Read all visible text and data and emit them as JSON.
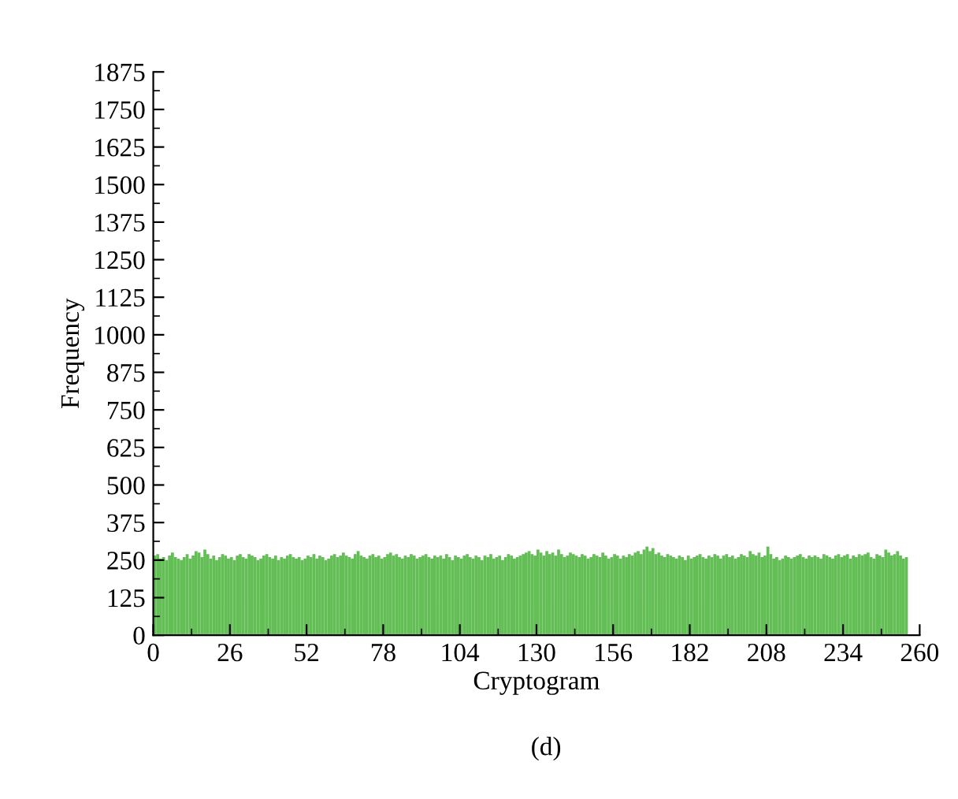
{
  "chart_data": {
    "type": "histogram",
    "xlabel": "Cryptogram",
    "ylabel": "Frequency",
    "annotations": [
      "(d)"
    ],
    "color": "#63be55",
    "bins": [
      0,
      1,
      2,
      3,
      4,
      5,
      6,
      7,
      8,
      9,
      10,
      11,
      12,
      13,
      14,
      15,
      16,
      17,
      18,
      19,
      20,
      21,
      22,
      23,
      24,
      25,
      26,
      27,
      28,
      29,
      30,
      31,
      32,
      33,
      34,
      35,
      36,
      37,
      38,
      39,
      40,
      41,
      42,
      43,
      44,
      45,
      46,
      47,
      48,
      49,
      50,
      51,
      52,
      53,
      54,
      55,
      56,
      57,
      58,
      59,
      60,
      61,
      62,
      63,
      64,
      65,
      66,
      67,
      68,
      69,
      70,
      71,
      72,
      73,
      74,
      75,
      76,
      77,
      78,
      79,
      80,
      81,
      82,
      83,
      84,
      85,
      86,
      87,
      88,
      89,
      90,
      91,
      92,
      93,
      94,
      95,
      96,
      97,
      98,
      99,
      100,
      101,
      102,
      103,
      104,
      105,
      106,
      107,
      108,
      109,
      110,
      111,
      112,
      113,
      114,
      115,
      116,
      117,
      118,
      119,
      120,
      121,
      122,
      123,
      124,
      125,
      126,
      127,
      128,
      129,
      130,
      131,
      132,
      133,
      134,
      135,
      136,
      137,
      138,
      139,
      140,
      141,
      142,
      143,
      144,
      145,
      146,
      147,
      148,
      149,
      150,
      151,
      152,
      153,
      154,
      155,
      156,
      157,
      158,
      159,
      160,
      161,
      162,
      163,
      164,
      165,
      166,
      167,
      168,
      169,
      170,
      171,
      172,
      173,
      174,
      175,
      176,
      177,
      178,
      179,
      180,
      181,
      182,
      183,
      184,
      185,
      186,
      187,
      188,
      189,
      190,
      191,
      192,
      193,
      194,
      195,
      196,
      197,
      198,
      199,
      200,
      201,
      202,
      203,
      204,
      205,
      206,
      207,
      208,
      209,
      210,
      211,
      212,
      213,
      214,
      215,
      216,
      217,
      218,
      219,
      220,
      221,
      222,
      223,
      224,
      225,
      226,
      227,
      228,
      229,
      230,
      231,
      232,
      233,
      234,
      235,
      236,
      237,
      238,
      239,
      240,
      241,
      242,
      243,
      244,
      245,
      246,
      247,
      248,
      249,
      250,
      251,
      252,
      253,
      254,
      255,
      256
    ],
    "values": [
      265,
      270,
      255,
      260,
      250,
      265,
      275,
      260,
      255,
      250,
      260,
      270,
      255,
      265,
      280,
      275,
      260,
      285,
      270,
      255,
      265,
      250,
      260,
      270,
      265,
      255,
      260,
      250,
      265,
      270,
      260,
      255,
      270,
      265,
      260,
      250,
      255,
      265,
      270,
      260,
      255,
      265,
      250,
      260,
      255,
      265,
      270,
      260,
      255,
      260,
      250,
      255,
      265,
      260,
      270,
      255,
      265,
      260,
      250,
      255,
      265,
      270,
      260,
      265,
      275,
      265,
      260,
      255,
      270,
      280,
      265,
      260,
      255,
      265,
      270,
      260,
      265,
      255,
      260,
      270,
      275,
      265,
      270,
      260,
      255,
      265,
      260,
      270,
      265,
      255,
      260,
      265,
      270,
      260,
      255,
      265,
      260,
      265,
      255,
      270,
      260,
      250,
      265,
      260,
      255,
      265,
      270,
      260,
      255,
      265,
      260,
      250,
      265,
      260,
      270,
      255,
      260,
      265,
      250,
      260,
      270,
      265,
      255,
      260,
      265,
      270,
      275,
      280,
      270,
      265,
      285,
      275,
      265,
      280,
      270,
      275,
      265,
      285,
      270,
      260,
      265,
      275,
      270,
      265,
      260,
      270,
      265,
      255,
      260,
      270,
      265,
      260,
      275,
      265,
      255,
      260,
      270,
      265,
      255,
      265,
      260,
      270,
      265,
      275,
      280,
      270,
      285,
      295,
      280,
      290,
      270,
      275,
      265,
      260,
      270,
      265,
      260,
      255,
      265,
      260,
      250,
      265,
      255,
      260,
      265,
      270,
      260,
      255,
      265,
      260,
      270,
      265,
      255,
      265,
      270,
      260,
      265,
      255,
      260,
      270,
      265,
      260,
      280,
      270,
      265,
      275,
      260,
      265,
      295,
      270,
      255,
      260,
      250,
      255,
      265,
      260,
      255,
      260,
      265,
      270,
      260,
      255,
      265,
      260,
      265,
      260,
      255,
      270,
      265,
      260,
      255,
      265,
      270,
      260,
      265,
      270,
      255,
      265,
      260,
      270,
      265,
      270,
      275,
      260,
      255,
      270,
      265,
      260,
      285,
      275,
      265,
      270,
      280,
      265,
      255,
      260
    ],
    "xlim": [
      0,
      260
    ],
    "xticks": [
      0,
      26,
      52,
      78,
      104,
      130,
      156,
      182,
      208,
      234,
      260
    ],
    "ylim": [
      0,
      1875
    ],
    "yticks": [
      0,
      125,
      250,
      375,
      500,
      625,
      750,
      875,
      1000,
      1125,
      1250,
      1375,
      1500,
      1625,
      1750,
      1875
    ],
    "grid": false
  }
}
